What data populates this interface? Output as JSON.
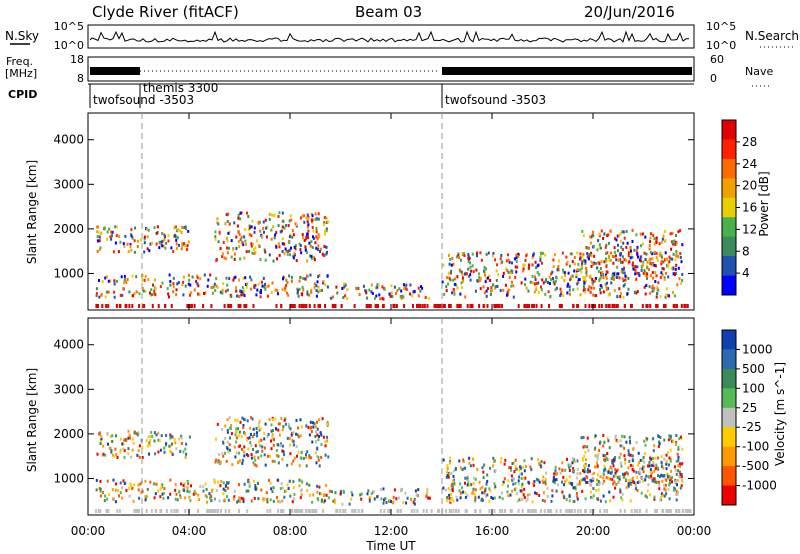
{
  "header": {
    "station": "Clyde River (fitACF)",
    "beam": "Beam 03",
    "date": "20/Jun/2016"
  },
  "side_labels": {
    "nsky": "N.Sky",
    "nsearch": "N.Search",
    "freq_top": "Freq.",
    "freq_unit": "[MHz]",
    "nave": "Nave",
    "cpid": "CPID"
  },
  "noise_panel": {
    "left_ticks": [
      "10^5",
      "10^0"
    ],
    "right_ticks": [
      "10^5",
      "10^0"
    ]
  },
  "freq_panel": {
    "left_ticks": [
      "18",
      "8"
    ],
    "right_ticks": [
      "60",
      "0"
    ]
  },
  "cpid_segments": [
    {
      "label": "twofsound -3503",
      "start": 0.0
    },
    {
      "label": "themis 3300",
      "start": 2.0
    },
    {
      "label": "twofsound -3503",
      "start": 14.0
    }
  ],
  "colors": {
    "power": [
      "#0000ff",
      "#2050b0",
      "#3a8a5a",
      "#4ab04a",
      "#e8d000",
      "#f0a000",
      "#ff6a00",
      "#ff2000",
      "#e00000"
    ],
    "velocity": [
      "#1040b0",
      "#2a6ab0",
      "#3a8a5a",
      "#55bb55",
      "#c0c0c0",
      "#ffcc00",
      "#ff9900",
      "#ff5500",
      "#ee0000"
    ]
  },
  "chart_data": [
    {
      "type": "heatmap",
      "title": "",
      "xlabel": "Time UT",
      "ylabel": "Slant Range [km]",
      "xlim": [
        0,
        24
      ],
      "ylim": [
        180,
        4600
      ],
      "x_tick_labels": [
        "00:00",
        "04:00",
        "08:00",
        "12:00",
        "16:00",
        "20:00",
        "00:00"
      ],
      "y_tick_labels": [
        "1000",
        "2000",
        "3000",
        "4000"
      ],
      "colorbar_label": "Power [dB]",
      "colorbar_ticks": [
        "4",
        "8",
        "12",
        "16",
        "20",
        "24",
        "28"
      ],
      "scatter_regions": [
        {
          "t0": 0.3,
          "t1": 9.5,
          "r0": 500,
          "r1": 1000
        },
        {
          "t0": 0.3,
          "t1": 4.0,
          "r0": 1500,
          "r1": 2100
        },
        {
          "t0": 5.0,
          "t1": 9.5,
          "r0": 1300,
          "r1": 2400
        },
        {
          "t0": 9.5,
          "t1": 13.5,
          "r0": 450,
          "r1": 800
        },
        {
          "t0": 14.0,
          "t1": 23.5,
          "r0": 500,
          "r1": 1500
        },
        {
          "t0": 19.5,
          "t1": 23.5,
          "r0": 900,
          "r1": 2000
        }
      ]
    },
    {
      "type": "heatmap",
      "title": "",
      "xlabel": "Time UT",
      "ylabel": "Slant Range [km]",
      "xlim": [
        0,
        24
      ],
      "ylim": [
        180,
        4600
      ],
      "x_tick_labels": [
        "00:00",
        "04:00",
        "08:00",
        "12:00",
        "16:00",
        "20:00",
        "00:00"
      ],
      "y_tick_labels": [
        "1000",
        "2000",
        "3000",
        "4000"
      ],
      "colorbar_label": "Velocity [m s^-1]",
      "colorbar_ticks": [
        "1000",
        "500",
        "100",
        "25",
        "-25",
        "-100",
        "-500",
        "-1000"
      ],
      "scatter_regions": [
        {
          "t0": 0.3,
          "t1": 9.5,
          "r0": 500,
          "r1": 1000
        },
        {
          "t0": 0.3,
          "t1": 4.0,
          "r0": 1500,
          "r1": 2100
        },
        {
          "t0": 5.0,
          "t1": 9.5,
          "r0": 1300,
          "r1": 2400
        },
        {
          "t0": 9.5,
          "t1": 13.5,
          "r0": 450,
          "r1": 800
        },
        {
          "t0": 14.0,
          "t1": 23.5,
          "r0": 500,
          "r1": 1500
        },
        {
          "t0": 19.5,
          "t1": 23.5,
          "r0": 900,
          "r1": 2000
        }
      ]
    }
  ]
}
